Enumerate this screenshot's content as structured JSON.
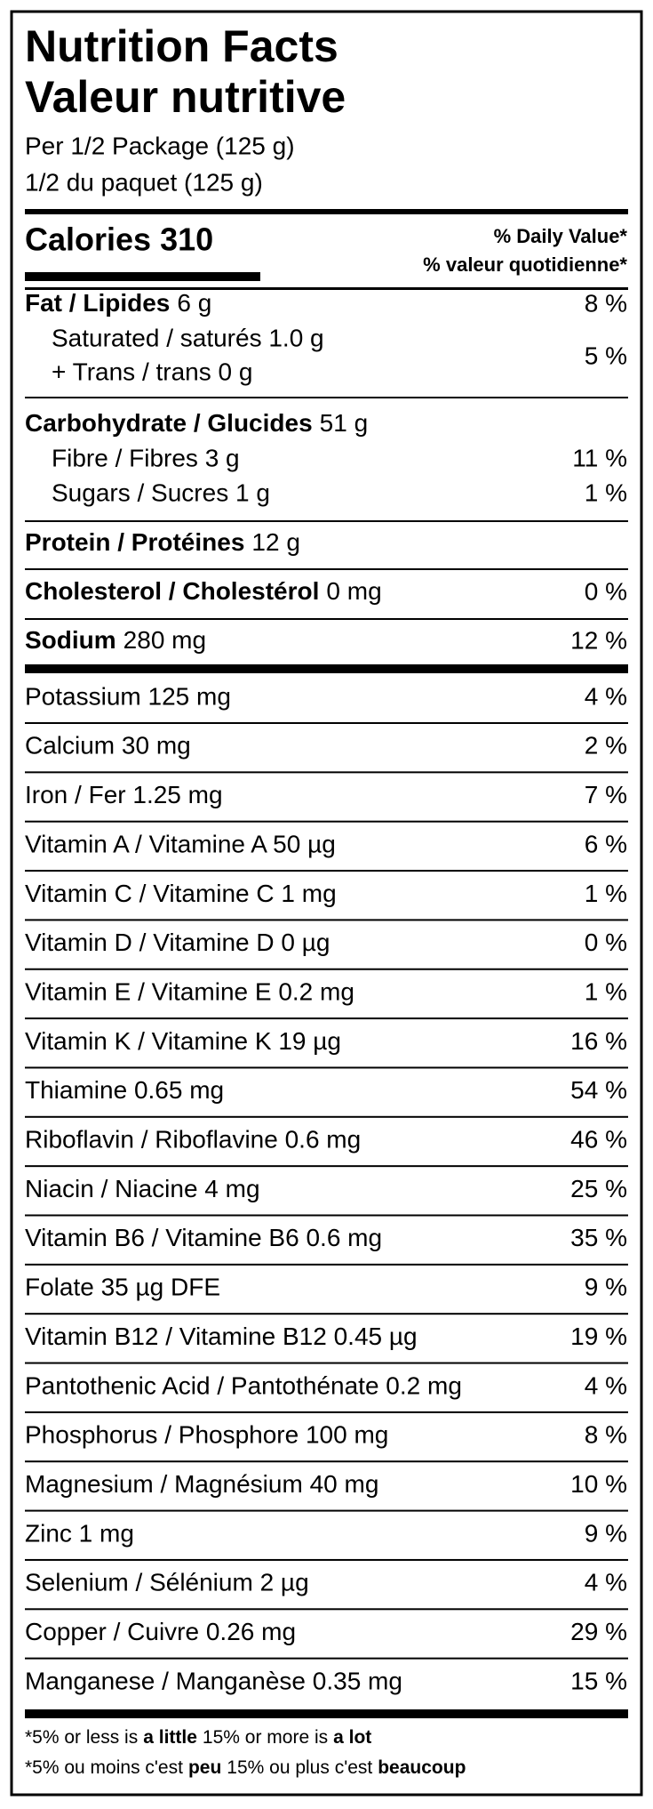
{
  "title": [
    "Nutrition Facts",
    "Valeur nutritive"
  ],
  "serving": [
    "Per 1/2 Package (125 g)",
    "1/2 du paquet (125 g)"
  ],
  "calories": "Calories 310",
  "daily_value_header": [
    "% Daily Value*",
    "% valeur quotidienne*"
  ],
  "fat": {
    "name": "Fat / Lipides",
    "amount": "6 g",
    "dv": "8 %",
    "sub": [
      "Saturated / saturés 1.0 g",
      "+ Trans / trans 0 g"
    ],
    "sub_dv": "5 %"
  },
  "carbohydrate": {
    "name": "Carbohydrate / Glucides",
    "amount": "51 g",
    "sub": [
      {
        "name": "Fibre / Fibres 3 g",
        "dv": "11 %"
      },
      {
        "name": "Sugars / Sucres 1 g",
        "dv": "1 %"
      }
    ]
  },
  "protein": {
    "name": "Protein / Protéines",
    "amount": "12 g"
  },
  "cholesterol": {
    "name": "Cholesterol / Cholestérol",
    "amount": "0 mg",
    "dv": "0 %"
  },
  "sodium": {
    "name": "Sodium",
    "amount": "280 mg",
    "dv": "12 %"
  },
  "minerals": [
    [
      "Potassium 125 mg",
      "4 %"
    ],
    [
      "Calcium 30 mg",
      "2 %"
    ],
    [
      "Iron / Fer 1.25 mg",
      "7 %"
    ],
    [
      "Vitamin A / Vitamine A 50 µg",
      "6 %"
    ],
    [
      "Vitamin C / Vitamine C 1 mg",
      "1 %"
    ],
    [
      "Vitamin D / Vitamine D 0 µg",
      "0 %"
    ],
    [
      "Vitamin E / Vitamine E 0.2 mg",
      "1 %"
    ],
    [
      "Vitamin K / Vitamine K 19 µg",
      "16 %"
    ],
    [
      "Thiamine 0.65 mg",
      "54 %"
    ],
    [
      "Riboflavin / Riboflavine 0.6 mg",
      "46 %"
    ],
    [
      "Niacin / Niacine 4 mg",
      "25 %"
    ],
    [
      "Vitamin B6 / Vitamine B6 0.6 mg",
      "35 %"
    ],
    [
      "Folate 35 µg DFE",
      "9 %"
    ],
    [
      "Vitamin B12 / Vitamine B12 0.45 µg",
      "19 %"
    ],
    [
      "Pantothenic Acid / Pantothénate 0.2 mg",
      "4 %"
    ],
    [
      "Phosphorus / Phosphore 100 mg",
      "8 %"
    ],
    [
      "Magnesium / Magnésium 40 mg",
      "10 %"
    ],
    [
      "Zinc 1 mg",
      "9 %"
    ],
    [
      "Selenium / Sélénium 2 µg",
      "4 %"
    ],
    [
      "Copper / Cuivre 0.26 mg",
      "29 %"
    ],
    [
      "Manganese / Manganèse 0.35 mg",
      "15 %"
    ]
  ],
  "footnote": [
    [
      {
        "text": "*5% or less is",
        "bold": false
      },
      {
        "text": "a little",
        "bold": true
      },
      {
        "text": "15% or more is",
        "bold": false
      },
      {
        "text": "a lot",
        "bold": true
      }
    ],
    [
      {
        "text": "*5% ou moins c'est",
        "bold": false
      },
      {
        "text": "peu",
        "bold": true
      },
      {
        "text": "15% ou plus c'est",
        "bold": false
      },
      {
        "text": "beaucoup",
        "bold": true
      }
    ]
  ]
}
